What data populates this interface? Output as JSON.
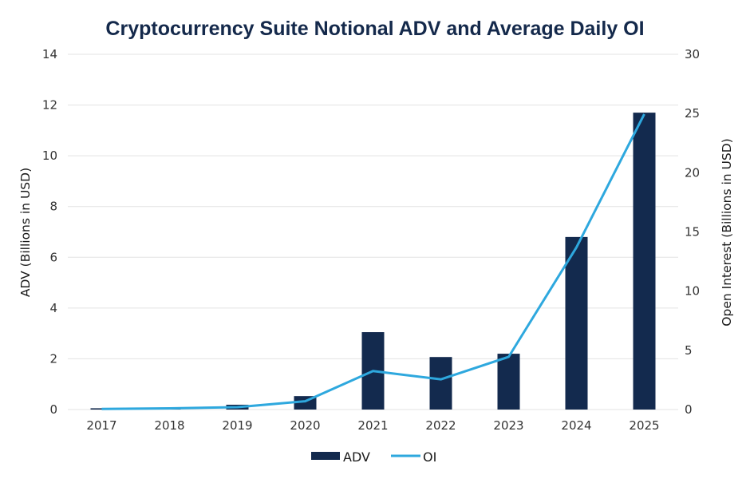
{
  "chart_data": {
    "type": "bar+line",
    "title": "Cryptocurrency Suite Notional ADV and Average Daily OI",
    "categories": [
      "2017",
      "2018",
      "2019",
      "2020",
      "2021",
      "2022",
      "2023",
      "2024",
      "2025"
    ],
    "series": [
      {
        "name": "ADV",
        "type": "bar",
        "axis": "left",
        "color": "#132a4e",
        "values": [
          0.05,
          0.08,
          0.19,
          0.53,
          3.05,
          2.07,
          2.2,
          6.8,
          11.7
        ]
      },
      {
        "name": "OI",
        "type": "line",
        "axis": "right",
        "color": "#2ea8de",
        "values": [
          0.05,
          0.1,
          0.2,
          0.7,
          3.25,
          2.55,
          4.45,
          13.7,
          24.95
        ]
      }
    ],
    "ylabel": "ADV (Billions in USD)",
    "y2label": "Open Interest (Billions in USD)",
    "xlabel": "",
    "ylim": [
      0,
      14
    ],
    "yticks": [
      "0",
      "2",
      "4",
      "6",
      "8",
      "10",
      "12",
      "14"
    ],
    "y2lim": [
      0,
      30
    ],
    "y2ticks": [
      "0",
      "5",
      "10",
      "15",
      "20",
      "25",
      "30"
    ],
    "grid": true,
    "legend": {
      "placement": "bottom-center",
      "entries": [
        "ADV",
        "OI"
      ]
    }
  }
}
